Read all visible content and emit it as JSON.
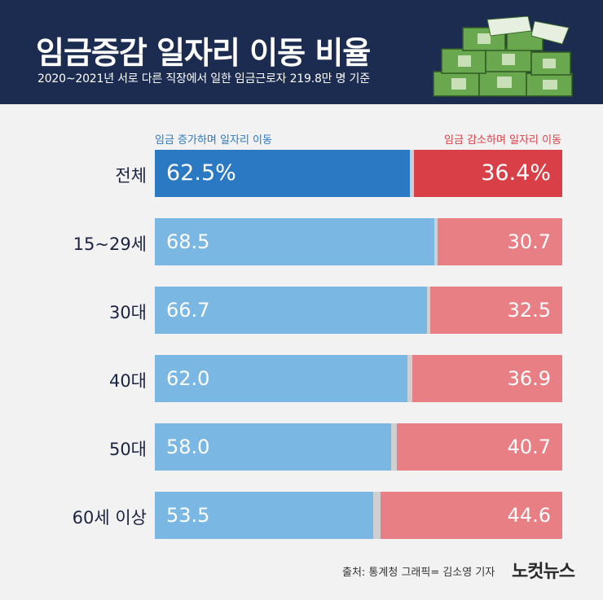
{
  "header": {
    "title": "임금증감 일자리 이동 비율",
    "subtitle": "2020~2021년 서로 다른 직장에서 일한 임금근로자 219.8만 명 기준"
  },
  "colors": {
    "header_bg": "#1c2b50",
    "increase_total": "#2a79c2",
    "decrease_total": "#d93f46",
    "increase": "#7ab7e3",
    "decrease": "#e87f85",
    "gap": "#cfcfd1",
    "legend_increase": "#2a79c2",
    "legend_decrease": "#d93f46"
  },
  "chart_data": {
    "type": "bar",
    "orientation": "horizontal-stacked",
    "categories": [
      "전체",
      "15~29세",
      "30대",
      "40대",
      "50대",
      "60세 이상"
    ],
    "series": [
      {
        "name": "임금 증가하며 일자리 이동",
        "values": [
          62.5,
          68.5,
          66.7,
          62.0,
          58.0,
          53.5
        ]
      },
      {
        "name": "임금 감소하며 일자리 이동",
        "values": [
          36.4,
          30.7,
          32.5,
          36.9,
          40.7,
          44.6
        ]
      }
    ],
    "value_labels_increase": [
      "62.5%",
      "68.5",
      "66.7",
      "62.0",
      "58.0",
      "53.5"
    ],
    "value_labels_decrease": [
      "36.4%",
      "30.7",
      "32.5",
      "36.9",
      "40.7",
      "44.6"
    ],
    "xlim": [
      0,
      100
    ],
    "legend_position": "top"
  },
  "footer": {
    "source": "출처: 통계청  그래픽= 김소영 기자",
    "logo": "노컷뉴스"
  },
  "icons": {
    "money": "money-stack-icon"
  }
}
